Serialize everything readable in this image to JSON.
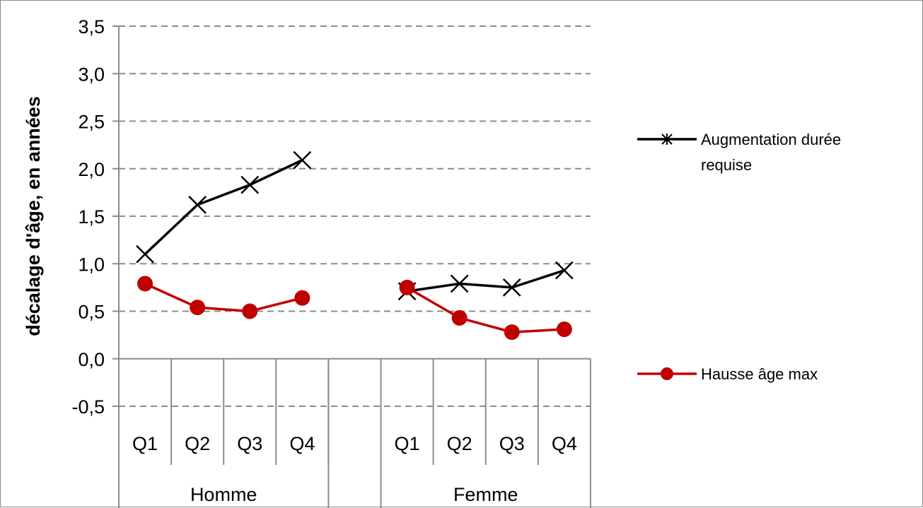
{
  "chart_data": {
    "type": "line",
    "title": "",
    "ylabel": "décalage d'âge, en années",
    "ylim": [
      -0.5,
      3.5
    ],
    "ytick_labels": [
      "-0,5",
      "0,0",
      "0,5",
      "1,0",
      "1,5",
      "2,0",
      "2,5",
      "3,0",
      "3,5"
    ],
    "ytick_values": [
      -0.5,
      0,
      0.5,
      1.0,
      1.5,
      2.0,
      2.5,
      3.0,
      3.5
    ],
    "grid": "horizontal-dashed",
    "groups": [
      {
        "label": "Homme",
        "categories": [
          "Q1",
          "Q2",
          "Q3",
          "Q4"
        ]
      },
      {
        "label": "Femme",
        "categories": [
          "Q1",
          "Q2",
          "Q3",
          "Q4"
        ]
      }
    ],
    "legend_position": "right",
    "series": [
      {
        "name": "Augmentation durée requise",
        "color": "#000000",
        "marker": "star",
        "groups": [
          [
            1.1,
            1.62,
            1.83,
            2.09
          ],
          [
            0.71,
            0.79,
            0.75,
            0.93
          ]
        ]
      },
      {
        "name": "Hausse âge max",
        "color": "#c00000",
        "marker": "circle",
        "groups": [
          [
            0.79,
            0.54,
            0.5,
            0.64
          ],
          [
            0.75,
            0.43,
            0.28,
            0.31
          ]
        ]
      }
    ]
  },
  "legend": {
    "series1_line1": "Augmentation durée",
    "series1_line2": "requise",
    "series2": "Hausse âge max"
  }
}
